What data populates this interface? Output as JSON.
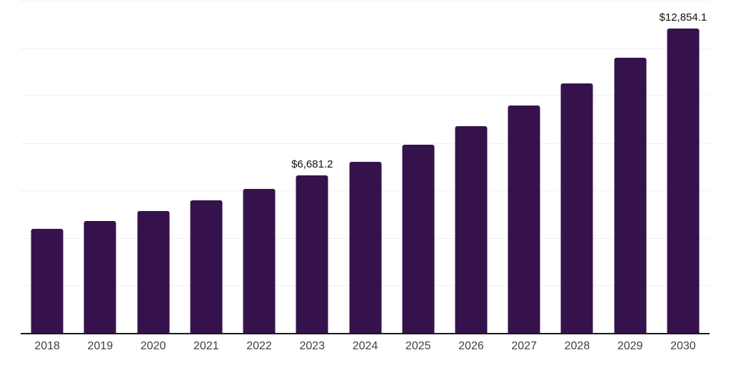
{
  "chart_data": {
    "type": "bar",
    "categories": [
      "2018",
      "2019",
      "2020",
      "2021",
      "2022",
      "2023",
      "2024",
      "2025",
      "2026",
      "2027",
      "2028",
      "2029",
      "2030"
    ],
    "values": [
      4410,
      4760,
      5160,
      5610,
      6110,
      6681.2,
      7250,
      7955,
      8730,
      9600,
      10550,
      11635,
      12854.1
    ],
    "data_labels": [
      "",
      "",
      "",
      "",
      "",
      "$6,681.2",
      "",
      "",
      "",
      "",
      "",
      "",
      "$12,854.1"
    ],
    "xlabel": "",
    "ylabel": "",
    "ylim": [
      0,
      14000
    ],
    "gridline_step": 2000,
    "grid": "horizontal",
    "legend": "none",
    "y_axis_tick_labels_visible": false
  },
  "style": {
    "background": "#ffffff",
    "bar_color": "#36124d",
    "grid_color": "#f0f0f0",
    "axis_color": "#1a1a1a",
    "label_color": "#111111",
    "tick_color": "#3f3f3f"
  }
}
